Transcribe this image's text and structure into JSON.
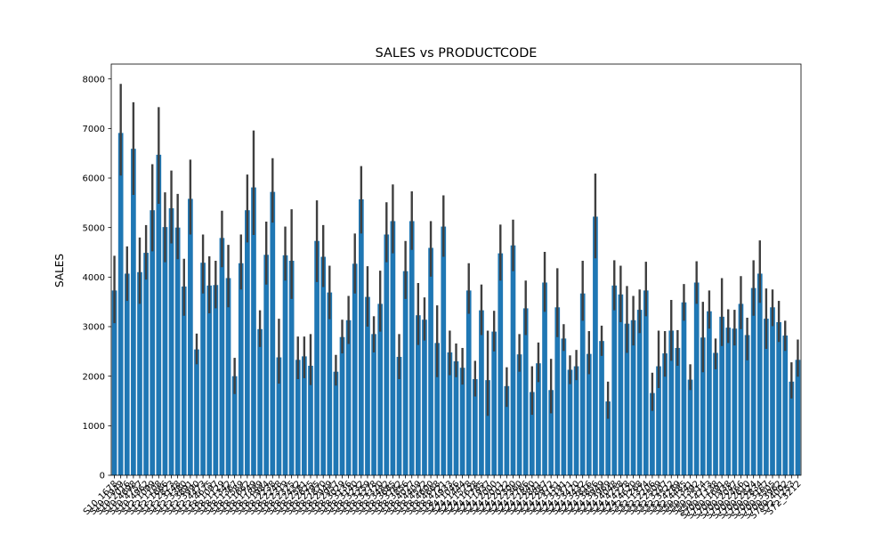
{
  "chart_data": {
    "type": "bar",
    "title": "SALES vs PRODUCTCODE",
    "xlabel": "",
    "ylabel": "SALES",
    "ylim": [
      0,
      8300
    ],
    "y_ticks": [
      0,
      1000,
      2000,
      3000,
      4000,
      5000,
      6000,
      7000,
      8000
    ],
    "grid": false,
    "bar_color": "#1f77b4",
    "errorbar_color": "#3f3f3f",
    "visible_categories": [
      "S10_1678",
      "S10_1949",
      "S10_2016",
      "S10_4698",
      "S10_4757",
      "S10_4962",
      "S12_1099",
      "S12_1108",
      "S12_1666",
      "S12_2823",
      "S12_3148",
      "S12_3380",
      "S12_3891",
      "S12_3990",
      "S12_4473",
      "S12_4675",
      "S18_1097",
      "S18_1129",
      "S18_1342",
      "S18_1367",
      "S18_1589",
      "S18_1662",
      "S18_1749",
      "S18_1889",
      "S18_1984",
      "S18_2238",
      "S18_2248",
      "S18_2319",
      "S18_2325",
      "S18_2432",
      "S18_2581",
      "S18_2625",
      "S18_2795",
      "S18_2870",
      "S18_2949",
      "S18_2957",
      "S18_3029",
      "S18_3136",
      "S18_3140",
      "S18_3232",
      "S18_3259",
      "S18_3278",
      "S18_3320",
      "S18_3482",
      "S18_3685",
      "S18_3782",
      "S18_3856",
      "S18_4027",
      "S18_4409",
      "S18_4522",
      "S18_4600",
      "S18_4668",
      "S18_4721",
      "S18_4933",
      "S24_1046",
      "S24_1444",
      "S24_1578",
      "S24_1628",
      "S24_1785",
      "S24_1937",
      "S24_2000",
      "S24_2011",
      "S24_2022",
      "S24_2300",
      "S24_2360",
      "S24_2766",
      "S24_2840",
      "S24_2841",
      "S24_2887",
      "S24_2972",
      "S24_3151",
      "S24_3191",
      "S24_3371",
      "S24_3420",
      "S24_3432",
      "S24_3816",
      "S24_3856",
      "S24_3949",
      "S24_3969",
      "S24_4048",
      "S24_4258",
      "S24_4278",
      "S24_4620",
      "S32_1268",
      "S32_1374",
      "S32_2206",
      "S32_2509",
      "S32_3207",
      "S32_3522",
      "S32_4289",
      "S32_4485",
      "S50_1341",
      "S50_1392",
      "S50_1514",
      "S50_4713",
      "S700_1138",
      "S700_1691",
      "S700_1938",
      "S700_2047",
      "S700_2466",
      "S700_2610",
      "S700_2824",
      "S700_2834",
      "S700_3167",
      "S700_3505",
      "S700_3962",
      "S700_4002",
      "S72_1253",
      "S72_3212"
    ],
    "values": [
      3730,
      6910,
      4070,
      6590,
      4100,
      4490,
      5350,
      6470,
      5010,
      5390,
      5000,
      3810,
      5580,
      2540,
      4290,
      3830,
      3840,
      4790,
      3980,
      2000,
      4280,
      5350,
      5810,
      2950,
      4450,
      5720,
      2380,
      4440,
      4330,
      2330,
      2400,
      2210,
      4730,
      4410,
      3690,
      2090,
      2790,
      3130,
      4270,
      5570,
      3600,
      2850,
      3460,
      4860,
      5130,
      2390,
      4120,
      5130,
      3230,
      3140,
      4590,
      2670,
      5020,
      2480,
      2300,
      2170,
      3730,
      1940,
      3330,
      1920,
      2900,
      4480,
      1800,
      4640,
      2440,
      3370,
      1680,
      2260,
      3890,
      1720,
      3390,
      2760,
      2130,
      2200,
      3670,
      2450,
      5220,
      2710,
      1490,
      3830,
      3650,
      3060,
      3130,
      3340,
      3730,
      1660,
      2200,
      2460,
      2920,
      2570,
      3490,
      1930,
      3890,
      2780,
      3310,
      2470,
      3200,
      2980,
      2960,
      3460,
      2830,
      3780,
      4070,
      3160,
      3390,
      3090,
      2820,
      1890,
      2330
    ],
    "errors_low": [
      3070,
      6050,
      3520,
      5660,
      3460,
      3950,
      4520,
      5480,
      4300,
      4680,
      4360,
      3220,
      4860,
      2240,
      3670,
      3270,
      3370,
      4200,
      3390,
      1640,
      3750,
      4700,
      4850,
      2590,
      3850,
      5100,
      1850,
      3930,
      3560,
      1940,
      1960,
      1820,
      3900,
      3800,
      3150,
      1810,
      2460,
      2650,
      3670,
      4880,
      3000,
      2480,
      2900,
      4300,
      4480,
      1940,
      3560,
      4550,
      2630,
      2720,
      4010,
      1980,
      4410,
      2020,
      1980,
      1830,
      3260,
      1590,
      2830,
      1200,
      2500,
      3930,
      1380,
      4120,
      2090,
      2830,
      1220,
      1880,
      3300,
      1250,
      2790,
      2510,
      1840,
      1920,
      3120,
      2040,
      4380,
      2410,
      1140,
      3330,
      3090,
      2470,
      2620,
      2870,
      3210,
      1300,
      1760,
      1990,
      2310,
      2210,
      3120,
      1720,
      3460,
      2080,
      2960,
      2140,
      2610,
      2670,
      2620,
      2950,
      2320,
      3220,
      3480,
      2550,
      3010,
      2690,
      2510,
      1550,
      1990
    ],
    "errors_high": [
      4430,
      7900,
      4620,
      7530,
      4800,
      5050,
      6280,
      7430,
      5710,
      6150,
      5680,
      4370,
      6370,
      2860,
      4860,
      4420,
      4330,
      5340,
      4650,
      2370,
      4860,
      6070,
      6960,
      3330,
      5120,
      6400,
      3160,
      5020,
      5370,
      2800,
      2800,
      2850,
      5550,
      5050,
      4230,
      2430,
      3140,
      3620,
      4880,
      6240,
      4220,
      3210,
      4130,
      5510,
      5870,
      2850,
      4730,
      5730,
      3880,
      3590,
      5130,
      3430,
      5650,
      2920,
      2660,
      2570,
      4280,
      2310,
      3850,
      2920,
      3320,
      5060,
      2180,
      5160,
      2850,
      3930,
      2200,
      2680,
      4510,
      2350,
      4180,
      3050,
      2420,
      2530,
      4330,
      2910,
      6090,
      3020,
      1890,
      4340,
      4230,
      3820,
      3620,
      3750,
      4310,
      2070,
      2920,
      2910,
      3540,
      2930,
      3860,
      2240,
      4320,
      3500,
      3730,
      2760,
      3980,
      3350,
      3340,
      4020,
      3180,
      4340,
      4740,
      3770,
      3750,
      3520,
      3120,
      2280,
      2740
    ]
  }
}
